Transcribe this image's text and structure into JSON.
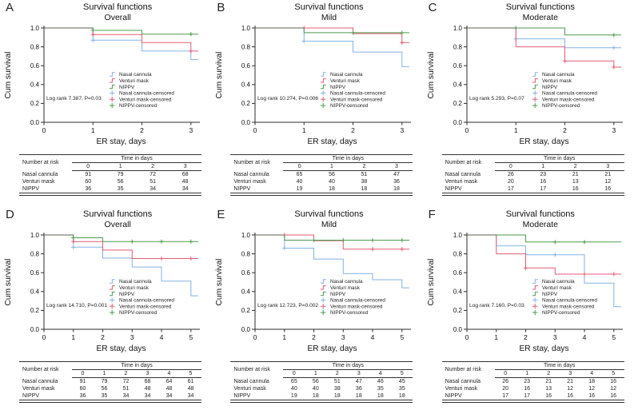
{
  "figure": {
    "shared": {
      "title": "Survival functions",
      "ylabel": "Cum survival",
      "xlabel": "ER stay, days",
      "risk_corner": "Number at risk",
      "time_header": "Time in days",
      "colors": {
        "nasal_cannula": "#85b2e3",
        "venturi_mask": "#e25b74",
        "nippv": "#4e9b4e",
        "overlap_segment": "#5d6053"
      }
    }
  },
  "chart_data": [
    {
      "type": "line",
      "panel": "A",
      "title": "Survival functions",
      "subtitle": "Overall",
      "xlabel": "ER stay, days",
      "ylabel": "Cum survival",
      "annotation": "Log rank 7.387, P=0.03",
      "xlim": [
        0,
        3.15
      ],
      "ylim": [
        0,
        1.0
      ],
      "xticks": [
        "0",
        "1",
        "2",
        "3"
      ],
      "yticks": [
        "0.0",
        "0.2",
        "0.4",
        "0.6",
        "0.8",
        "1.0"
      ],
      "legend": [
        "Nasal cannula",
        "Venturi mask",
        "NIPPV",
        "Nasal cannula-censored",
        "Venturi mask-censored",
        "NIPPV-censored"
      ],
      "series": [
        {
          "name": "Nasal cannula",
          "color": "#85b2e3",
          "steps": [
            [
              0,
              1.0
            ],
            [
              1,
              0.87
            ],
            [
              2,
              0.755
            ],
            [
              3,
              0.665
            ]
          ],
          "censored": [
            [
              1,
              0.87
            ]
          ]
        },
        {
          "name": "Venturi mask",
          "color": "#e25b74",
          "steps": [
            [
              0,
              1.0
            ],
            [
              1,
              0.93
            ],
            [
              2,
              0.845
            ],
            [
              3,
              0.755
            ]
          ],
          "censored": [
            [
              1,
              0.93
            ],
            [
              3,
              0.755
            ]
          ]
        },
        {
          "name": "NIPPV",
          "color": "#4e9b4e",
          "steps": [
            [
              0,
              1.0
            ],
            [
              1,
              0.975
            ],
            [
              2,
              0.935
            ]
          ],
          "censored": [
            [
              1,
              0.975
            ],
            [
              3,
              0.935
            ]
          ]
        }
      ],
      "risk_table": {
        "corner_label": "Number at risk",
        "time_label": "Time in days",
        "times": [
          "0",
          "1",
          "2",
          "3"
        ],
        "rows": [
          {
            "label": "Nasal cannula",
            "values": [
              "91",
              "79",
              "72",
              "68"
            ]
          },
          {
            "label": "Venturi mask",
            "values": [
              "60",
              "56",
              "51",
              "48"
            ]
          },
          {
            "label": "NIPPV",
            "values": [
              "36",
              "35",
              "34",
              "34"
            ]
          }
        ]
      }
    },
    {
      "type": "line",
      "panel": "B",
      "title": "Survival functions",
      "subtitle": "Mild",
      "xlabel": "ER stay, days",
      "ylabel": "Cum survival",
      "annotation": "Log rank 10.274, P=0.006",
      "xlim": [
        0,
        3.15
      ],
      "ylim": [
        0,
        1.0
      ],
      "xticks": [
        "0",
        "1",
        "2",
        "3"
      ],
      "yticks": [
        "0.0",
        "0.2",
        "0.4",
        "0.6",
        "0.8",
        "1.0"
      ],
      "legend": [
        "Nasal cannula",
        "Venturi mask",
        "NIPPV",
        "Nasal cannula-censored",
        "Venturi mask-censored",
        "NIPPV-censored"
      ],
      "series": [
        {
          "name": "Nasal cannula",
          "color": "#85b2e3",
          "steps": [
            [
              0,
              1.0
            ],
            [
              1,
              0.86
            ],
            [
              2,
              0.745
            ],
            [
              3,
              0.59
            ]
          ],
          "censored": [
            [
              1,
              0.86
            ]
          ]
        },
        {
          "name": "Venturi mask",
          "color": "#e25b74",
          "steps": [
            [
              0,
              1.0
            ],
            [
              2,
              0.94
            ],
            [
              3,
              0.845
            ]
          ],
          "censored": [
            [
              1,
              1.0
            ],
            [
              3,
              0.845
            ]
          ]
        },
        {
          "name": "NIPPV",
          "color": "#4e9b4e",
          "steps": [
            [
              0,
              1.0
            ],
            [
              1,
              0.95
            ]
          ],
          "censored": [
            [
              2,
              0.95
            ],
            [
              3,
              0.95
            ]
          ]
        }
      ],
      "risk_table": {
        "corner_label": "Number at risk",
        "time_label": "Time in days",
        "times": [
          "0",
          "1",
          "2",
          "3"
        ],
        "rows": [
          {
            "label": "Nasal cannula",
            "values": [
              "65",
              "56",
              "51",
              "47"
            ]
          },
          {
            "label": "Venturi mask",
            "values": [
              "40",
              "40",
              "38",
              "36"
            ]
          },
          {
            "label": "NIPPV",
            "values": [
              "19",
              "18",
              "18",
              "18"
            ]
          }
        ]
      }
    },
    {
      "type": "line",
      "panel": "C",
      "title": "Survival functions",
      "subtitle": "Moderate",
      "xlabel": "ER stay, days",
      "ylabel": "Cum survival",
      "annotation": "Log rank 5.293, P=0.07",
      "xlim": [
        0,
        3.15
      ],
      "ylim": [
        0,
        1.0
      ],
      "xticks": [
        "0",
        "1",
        "2",
        "3"
      ],
      "yticks": [
        "0.0",
        "0.2",
        "0.4",
        "0.6",
        "0.8",
        "1.0"
      ],
      "legend": [
        "Nasal cannula",
        "Venturi mask",
        "NIPPV",
        "Nasal cannula-censored",
        "Venturi mask-censored",
        "NIPPV-censored"
      ],
      "series": [
        {
          "name": "Nasal cannula",
          "color": "#85b2e3",
          "steps": [
            [
              0,
              1.0
            ],
            [
              1,
              0.885
            ],
            [
              2,
              0.79
            ]
          ],
          "censored": [
            [
              1,
              0.885
            ],
            [
              3,
              0.79
            ]
          ]
        },
        {
          "name": "Venturi mask",
          "color": "#e25b74",
          "steps": [
            [
              0,
              1.0
            ],
            [
              1,
              0.8
            ],
            [
              2,
              0.65
            ],
            [
              3,
              0.585
            ]
          ],
          "censored": [
            [
              2,
              0.65
            ],
            [
              3,
              0.585
            ]
          ]
        },
        {
          "name": "NIPPV",
          "color": "#4e9b4e",
          "steps": [
            [
              0,
              1.0
            ],
            [
              2,
              0.925
            ]
          ],
          "censored": [
            [
              1,
              1.0
            ],
            [
              3,
              0.925
            ]
          ]
        }
      ],
      "risk_table": {
        "corner_label": "Number at risk",
        "time_label": "Time in days",
        "times": [
          "0",
          "1",
          "2",
          "3"
        ],
        "rows": [
          {
            "label": "Nasal cannula",
            "values": [
              "26",
              "23",
              "21",
              "21"
            ]
          },
          {
            "label": "Venturi mask",
            "values": [
              "20",
              "16",
              "13",
              "12"
            ]
          },
          {
            "label": "NIPPV",
            "values": [
              "17",
              "17",
              "16",
              "16"
            ]
          }
        ]
      }
    },
    {
      "type": "line",
      "panel": "D",
      "title": "Survival functions",
      "subtitle": "Overall",
      "xlabel": "ER stay, days",
      "ylabel": "Cum survival",
      "annotation": "Log rank 14.710, P=0.001",
      "xlim": [
        0,
        5.25
      ],
      "ylim": [
        0,
        1.0
      ],
      "xticks": [
        "0",
        "1",
        "2",
        "3",
        "4",
        "5"
      ],
      "yticks": [
        "0.0",
        "0.2",
        "0.4",
        "0.6",
        "0.8",
        "1.0"
      ],
      "legend": [
        "Nasal cannula",
        "Venturi mask",
        "NIPPV",
        "Nasal cannula-censored",
        "Venturi mask-censored",
        "NIPPV-censored"
      ],
      "series": [
        {
          "name": "Nasal cannula",
          "color": "#85b2e3",
          "steps": [
            [
              0,
              1.0
            ],
            [
              1,
              0.87
            ],
            [
              2,
              0.755
            ],
            [
              3,
              0.66
            ],
            [
              4,
              0.51
            ],
            [
              5,
              0.355
            ]
          ],
          "censored": [
            [
              1,
              0.87
            ]
          ]
        },
        {
          "name": "Venturi mask",
          "color": "#e25b74",
          "steps": [
            [
              0,
              1.0
            ],
            [
              1,
              0.93
            ],
            [
              2,
              0.84
            ],
            [
              3,
              0.75
            ]
          ],
          "censored": [
            [
              1,
              0.93
            ],
            [
              4,
              0.75
            ],
            [
              5,
              0.75
            ]
          ]
        },
        {
          "name": "NIPPV",
          "color": "#4e9b4e",
          "steps": [
            [
              0,
              1.0
            ],
            [
              1,
              0.97
            ],
            [
              2,
              0.93
            ]
          ],
          "censored": [
            [
              1,
              0.97
            ],
            [
              3,
              0.93
            ],
            [
              4,
              0.93
            ],
            [
              5,
              0.93
            ]
          ]
        }
      ],
      "risk_table": {
        "corner_label": "Number at risk",
        "time_label": "Time in days",
        "times": [
          "0",
          "1",
          "2",
          "3",
          "4",
          "5"
        ],
        "rows": [
          {
            "label": "Nasal cannula",
            "values": [
              "91",
              "79",
              "72",
              "68",
              "64",
              "61"
            ]
          },
          {
            "label": "Venturi mask",
            "values": [
              "60",
              "56",
              "51",
              "48",
              "48",
              "48"
            ]
          },
          {
            "label": "NIPPV",
            "values": [
              "36",
              "35",
              "34",
              "34",
              "34",
              "34"
            ]
          }
        ]
      }
    },
    {
      "type": "line",
      "panel": "E",
      "title": "Survival functions",
      "subtitle": "Mild",
      "xlabel": "ER stay, days",
      "ylabel": "Cum survival",
      "annotation": "Log rank 12.723, P=0.002",
      "xlim": [
        0,
        5.25
      ],
      "ylim": [
        0,
        1.0
      ],
      "xticks": [
        "0",
        "1",
        "2",
        "3",
        "4",
        "5"
      ],
      "yticks": [
        "0.0",
        "0.2",
        "0.4",
        "0.6",
        "0.8",
        "1.0"
      ],
      "legend": [
        "Nasal cannula",
        "Venturi mask",
        "NIPPV",
        "Nasal cannula-censored",
        "Venturi mask-censored",
        "NIPPV-censored"
      ],
      "series": [
        {
          "name": "Nasal cannula",
          "color": "#85b2e3",
          "steps": [
            [
              0,
              1.0
            ],
            [
              1,
              0.86
            ],
            [
              2,
              0.745
            ],
            [
              3,
              0.59
            ],
            [
              4,
              0.525
            ],
            [
              5,
              0.44
            ]
          ],
          "censored": [
            [
              1,
              0.86
            ]
          ]
        },
        {
          "name": "Venturi mask",
          "color": "#e25b74",
          "steps": [
            [
              0,
              1.0
            ],
            [
              2,
              0.94
            ],
            [
              3,
              0.85
            ]
          ],
          "censored": [
            [
              1,
              1.0
            ],
            [
              4,
              0.85
            ],
            [
              5,
              0.85
            ]
          ]
        },
        {
          "name": "NIPPV",
          "color": "#4e9b4e",
          "steps": [
            [
              0,
              1.0
            ],
            [
              1,
              0.945
            ]
          ],
          "censored": [
            [
              2,
              0.945
            ],
            [
              3,
              0.945
            ],
            [
              4,
              0.945
            ],
            [
              5,
              0.945
            ]
          ]
        }
      ],
      "risk_table": {
        "corner_label": "Number at risk",
        "time_label": "Time in days",
        "times": [
          "0",
          "1",
          "2",
          "3",
          "4",
          "5"
        ],
        "rows": [
          {
            "label": "Nasal cannula",
            "values": [
              "65",
              "56",
              "51",
              "47",
              "46",
              "45"
            ]
          },
          {
            "label": "Venturi mask",
            "values": [
              "40",
              "40",
              "38",
              "36",
              "35",
              "35"
            ]
          },
          {
            "label": "NIPPV",
            "values": [
              "19",
              "18",
              "18",
              "18",
              "18",
              "18"
            ]
          }
        ]
      }
    },
    {
      "type": "line",
      "panel": "F",
      "title": "Survival functions",
      "subtitle": "Moderate",
      "xlabel": "ER stay, days",
      "ylabel": "Cum survival",
      "annotation": "Log rank 7.160, P=0.03",
      "xlim": [
        0,
        5.25
      ],
      "ylim": [
        0,
        1.0
      ],
      "xticks": [
        "0",
        "1",
        "2",
        "3",
        "4",
        "5"
      ],
      "yticks": [
        "0.0",
        "0.2",
        "0.4",
        "0.6",
        "0.8",
        "1.0"
      ],
      "legend": [
        "Nasal cannula",
        "Venturi mask",
        "NIPPV",
        "Nasal cannula-censored",
        "Venturi mask-censored",
        "NIPPV-censored"
      ],
      "series": [
        {
          "name": "Nasal cannula",
          "color": "#85b2e3",
          "steps": [
            [
              0,
              1.0
            ],
            [
              1,
              0.885
            ],
            [
              2,
              0.79
            ],
            [
              4,
              0.49
            ],
            [
              5,
              0.24
            ]
          ],
          "censored": [
            [
              3,
              0.79
            ]
          ]
        },
        {
          "name": "Venturi mask",
          "color": "#e25b74",
          "steps": [
            [
              0,
              1.0
            ],
            [
              1,
              0.8
            ],
            [
              2,
              0.65
            ],
            [
              3,
              0.585
            ]
          ],
          "censored": [
            [
              2,
              0.65
            ],
            [
              4,
              0.585
            ],
            [
              5,
              0.585
            ]
          ]
        },
        {
          "name": "NIPPV",
          "color": "#4e9b4e",
          "steps": [
            [
              0,
              1.0
            ],
            [
              2,
              0.925
            ]
          ],
          "censored": [
            [
              3,
              0.925
            ],
            [
              4,
              0.925
            ]
          ]
        }
      ],
      "risk_table": {
        "corner_label": "Number at risk",
        "time_label": "Time in days",
        "times": [
          "0",
          "1",
          "2",
          "3",
          "4",
          "5"
        ],
        "rows": [
          {
            "label": "Nasal cannula",
            "values": [
              "26",
              "23",
              "21",
              "21",
              "18",
              "16"
            ]
          },
          {
            "label": "Venturi mask",
            "values": [
              "20",
              "16",
              "13",
              "12",
              "12",
              "12"
            ]
          },
          {
            "label": "NIPPV",
            "values": [
              "17",
              "17",
              "16",
              "16",
              "16",
              "16"
            ]
          }
        ]
      }
    }
  ]
}
